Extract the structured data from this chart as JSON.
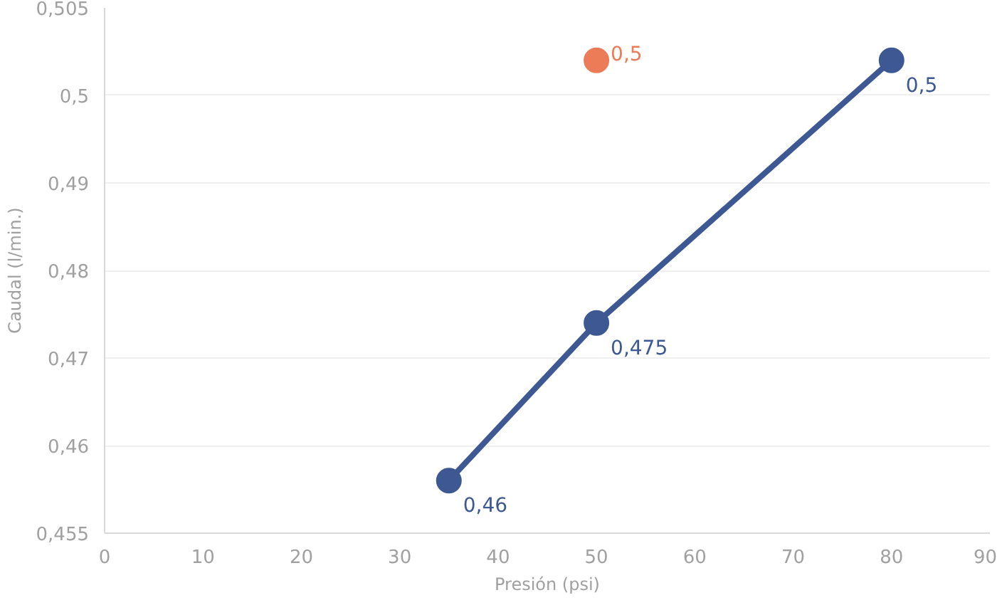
{
  "chart_data": {
    "type": "line",
    "xlabel": "Presión (psi)",
    "ylabel": "Caudal (l/min.)",
    "xlim": [
      0,
      90
    ],
    "xticks": [
      0,
      10,
      20,
      30,
      40,
      50,
      60,
      70,
      80,
      90
    ],
    "ylim": [
      0.455,
      0.505
    ],
    "yticks": [
      {
        "value": 0.455,
        "label": "0,455"
      },
      {
        "value": 0.46333,
        "label": "0,46"
      },
      {
        "value": 0.47167,
        "label": "0,47"
      },
      {
        "value": 0.48,
        "label": "0,48"
      },
      {
        "value": 0.48833,
        "label": "0,49"
      },
      {
        "value": 0.49667,
        "label": "0,5"
      },
      {
        "value": 0.505,
        "label": "0,505"
      }
    ],
    "grid": "y",
    "marker": "circle",
    "line_style": "solid",
    "data_labels": true,
    "series": [
      {
        "color": "#3d5892",
        "x": [
          35,
          50,
          80
        ],
        "values": [
          0.46,
          0.475,
          0.5
        ],
        "value_labels": [
          "0,46",
          "0,475",
          "0,5"
        ]
      },
      {
        "type": "scatter",
        "color": "#ec7b57",
        "x": [
          50
        ],
        "values": [
          0.5
        ],
        "value_labels": [
          "0,5"
        ]
      }
    ]
  }
}
